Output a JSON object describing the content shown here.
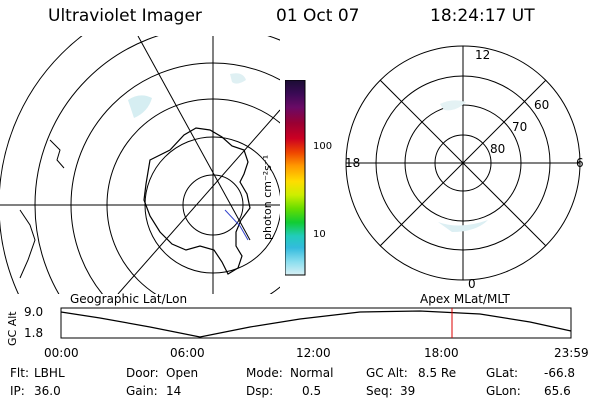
{
  "header": {
    "instrument": "Ultraviolet Imager",
    "date": "01 Oct 07",
    "time": "18:24:17 UT"
  },
  "left_map": {
    "caption": "Geographic Lat/Lon"
  },
  "right_map": {
    "caption": "Apex MLat/MLT",
    "mlt_labels": [
      "12",
      "18",
      "6",
      "0"
    ],
    "lat_labels": [
      "60",
      "70",
      "80"
    ]
  },
  "colorbar": {
    "unit": "photon cm⁻²s⁻¹",
    "ticks": [
      "100",
      "10"
    ],
    "colors": [
      "#1a0d33",
      "#3a0a55",
      "#6a0a66",
      "#990033",
      "#cc0022",
      "#ee4400",
      "#ff9900",
      "#ffdd00",
      "#ccee00",
      "#66dd00",
      "#11cc33",
      "#22ccbb",
      "#33bbdd",
      "#88ddee",
      "#d8f0f5"
    ]
  },
  "orbit_plot": {
    "ylabel": "GC Alt",
    "yticks": [
      "9.0",
      "1.8"
    ],
    "xticks": [
      "00:00",
      "06:00",
      "12:00",
      "18:00",
      "23:59"
    ],
    "marker_time_hours": 18.4
  },
  "info": {
    "flt_label": "Flt:",
    "flt_value": "LBHL",
    "ip_label": "IP:",
    "ip_value": "36.0",
    "door_label": "Door:",
    "door_value": "Open",
    "gain_label": "Gain:",
    "gain_value": "14",
    "mode_label": "Mode:",
    "mode_value": "Normal",
    "dsp_label": "Dsp:",
    "dsp_value": "0.5",
    "gcalt_label": "GC Alt:",
    "gcalt_value": "8.5 Re",
    "seq_label": "Seq:",
    "seq_value": "39",
    "glat_label": "GLat:",
    "glat_value": "-66.8",
    "glon_label": "GLon:",
    "glon_value": "65.6"
  }
}
